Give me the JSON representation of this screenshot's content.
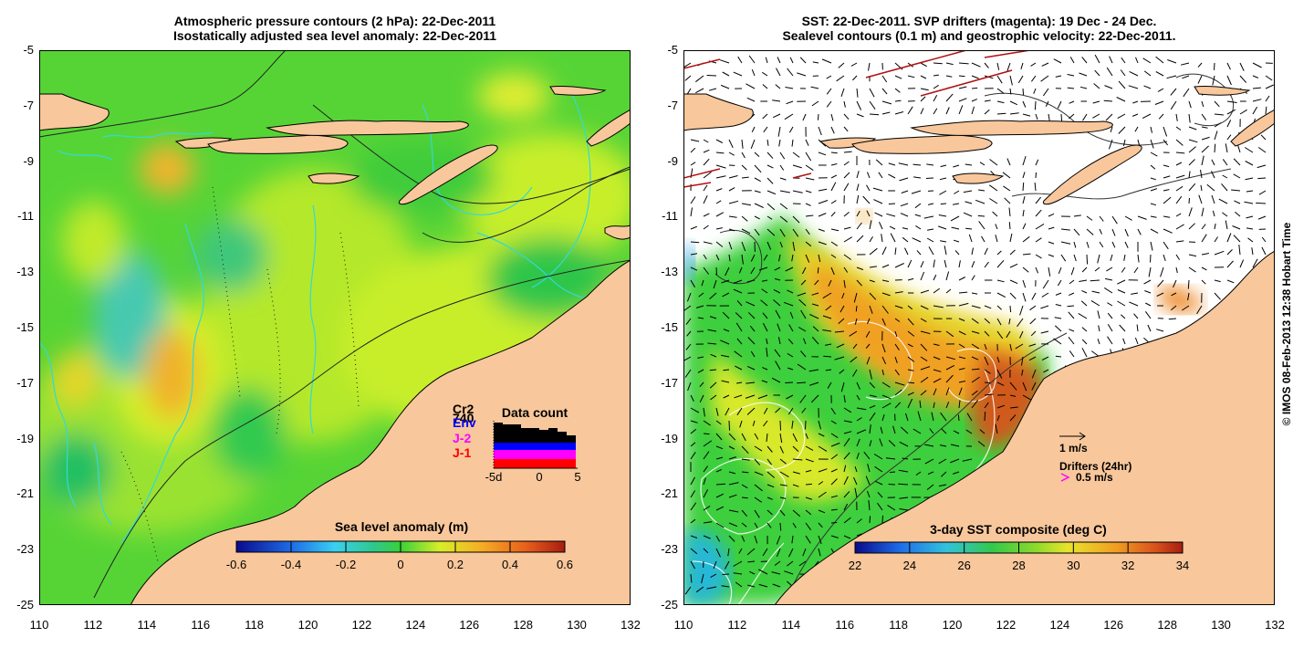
{
  "left_panel": {
    "title_line1": "Atmospheric pressure contours (2 hPa): 22-Dec-2011",
    "title_line2": "Isostatically adjusted sea level anomaly: 22-Dec-2011",
    "colorbar_label": "Sea level anomaly (m)",
    "colorbar_ticks": [
      "-0.6",
      "-0.4",
      "-0.2",
      "0",
      "0.2",
      "0.4",
      "0.6"
    ],
    "data_count": {
      "title": "Data count",
      "legend": [
        {
          "label": "Cr2",
          "color": "#000000"
        },
        {
          "label": "740",
          "color": "#000000"
        },
        {
          "label": "Env",
          "color": "#0000ff"
        },
        {
          "label": "J-2",
          "color": "#ff00ff"
        },
        {
          "label": "J-1",
          "color": "#ff0000"
        }
      ],
      "x_ticks": [
        "-5d",
        "0",
        "5"
      ]
    }
  },
  "right_panel": {
    "title_line1": "SST: 22-Dec-2011. SVP drifters (magenta): 19 Dec - 24 Dec.",
    "title_line2": "Sealevel contours (0.1 m) and geostrophic velocity: 22-Dec-2011.",
    "colorbar_label": "3-day SST composite (deg C)",
    "colorbar_ticks": [
      "22",
      "24",
      "26",
      "28",
      "30",
      "32",
      "34"
    ],
    "velocity_scale_label": "1 m/s",
    "drifters_label": "Drifters (24hr)",
    "drifter_speed_label": "0.5 m/s"
  },
  "axes": {
    "y_ticks": [
      "-5",
      "-7",
      "-9",
      "-11",
      "-13",
      "-15",
      "-17",
      "-19",
      "-21",
      "-23",
      "-25"
    ],
    "x_ticks": [
      "110",
      "112",
      "114",
      "116",
      "118",
      "120",
      "122",
      "124",
      "126",
      "128",
      "130",
      "132"
    ]
  },
  "copyright": "© IMOS 08-Feb-2013 12:38 Hobart Time",
  "colors": {
    "land": "#f8c79b",
    "ocean_green": "#3fd43b",
    "ocean_yellow": "#c8ee2a",
    "ocean_orange": "#f3a32a",
    "sst_red": "#c0391b",
    "contour_cyan": "#33d9d9"
  }
}
